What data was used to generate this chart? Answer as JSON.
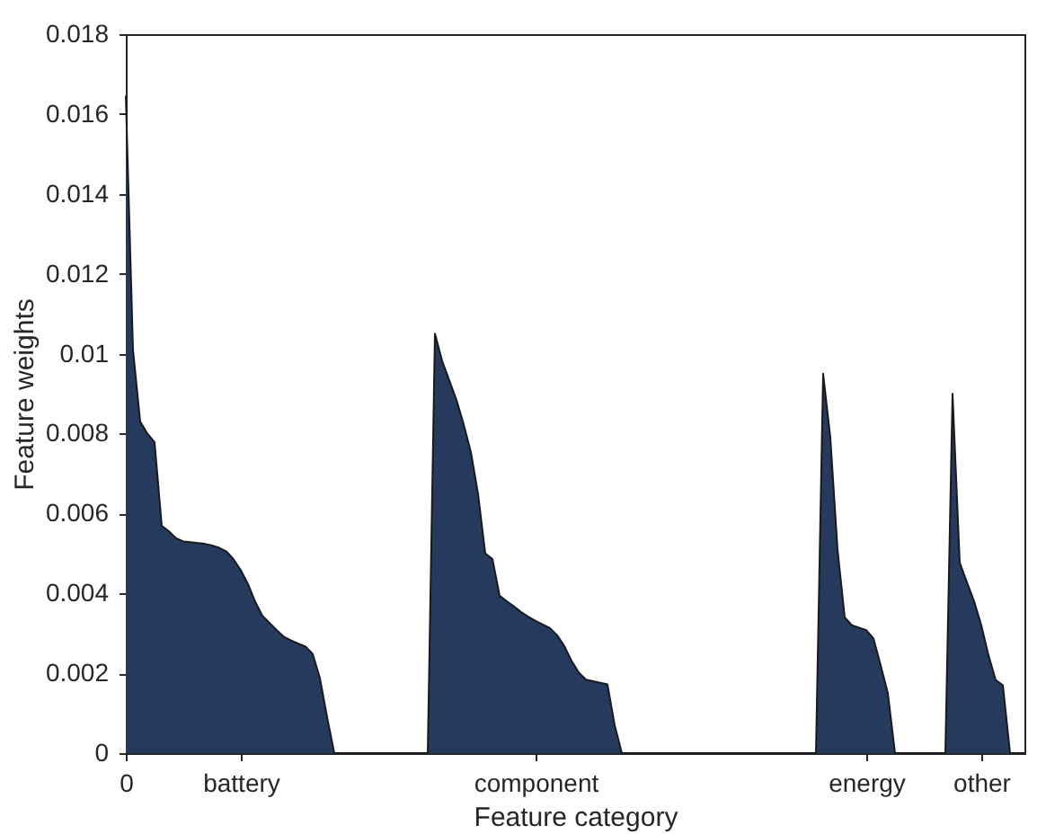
{
  "chart_data": {
    "type": "area",
    "xlabel": "Feature category",
    "ylabel": "Feature weights",
    "categories": [
      "0",
      null,
      null,
      null,
      null,
      null,
      null,
      null,
      null,
      null,
      null,
      null,
      null,
      null,
      null,
      null,
      "battery",
      null,
      null,
      null,
      null,
      null,
      null,
      null,
      null,
      null,
      null,
      null,
      null,
      null,
      null,
      null,
      null,
      null,
      null,
      null,
      null,
      null,
      null,
      null,
      null,
      null,
      null,
      null,
      null,
      null,
      null,
      null,
      null,
      null,
      null,
      null,
      null,
      null,
      null,
      null,
      null,
      "component",
      null,
      null,
      null,
      null,
      null,
      null,
      null,
      null,
      null,
      null,
      null,
      null,
      null,
      null,
      null,
      null,
      null,
      null,
      null,
      null,
      null,
      null,
      null,
      null,
      null,
      null,
      null,
      null,
      null,
      null,
      null,
      null,
      null,
      null,
      null,
      null,
      null,
      null,
      null,
      null,
      null,
      null,
      null,
      null,
      null,
      "energy",
      null,
      null,
      null,
      null,
      null,
      null,
      null,
      null,
      null,
      null,
      null,
      null,
      null,
      null,
      null,
      "other",
      null,
      null,
      null,
      null,
      null,
      null
    ],
    "series": [
      {
        "color": "#263a5e",
        "values": [
          0.01646,
          0.0101,
          0.0083,
          0.008,
          0.00778,
          0.00569,
          0.00555,
          0.00538,
          0.0053,
          0.00528,
          0.00526,
          0.00524,
          0.0052,
          0.00514,
          0.00505,
          0.00485,
          0.00458,
          0.00423,
          0.00379,
          0.00344,
          0.00326,
          0.00308,
          0.00291,
          0.00282,
          0.00274,
          0.00267,
          0.00248,
          0.00188,
          0.0009,
          0,
          0,
          0,
          0,
          0,
          0,
          0,
          0,
          0,
          0,
          0,
          0,
          0,
          0,
          0.0105,
          0.00982,
          0.00933,
          0.00884,
          0.00823,
          0.00754,
          0.00649,
          0.005,
          0.00486,
          0.00394,
          0.0038,
          0.00367,
          0.00353,
          0.00341,
          0.00331,
          0.00322,
          0.00313,
          0.00295,
          0.00268,
          0.00231,
          0.00202,
          0.00184,
          0.0018,
          0.00176,
          0.00172,
          0.0007,
          0,
          0,
          0,
          0,
          0,
          0,
          0,
          0,
          0,
          0,
          0,
          0,
          0,
          0,
          0,
          0,
          0,
          0,
          0,
          0,
          0,
          0,
          0,
          0,
          0,
          0,
          0,
          0,
          0.0095,
          0.0079,
          0.0051,
          0.0034,
          0.0032,
          0.00314,
          0.00308,
          0.00287,
          0.0022,
          0.0015,
          0,
          0,
          0,
          0,
          0,
          0,
          0,
          0,
          0.009,
          0.00477,
          0.00428,
          0.0038,
          0.0032,
          0.00245,
          0.00183,
          0.0017,
          0,
          0,
          0
        ]
      }
    ],
    "ylim": [
      0,
      0.018
    ],
    "yticks": [
      0,
      0.002,
      0.004,
      0.006,
      0.008,
      0.01,
      0.012,
      0.014,
      0.016,
      0.018
    ],
    "grid": false
  }
}
